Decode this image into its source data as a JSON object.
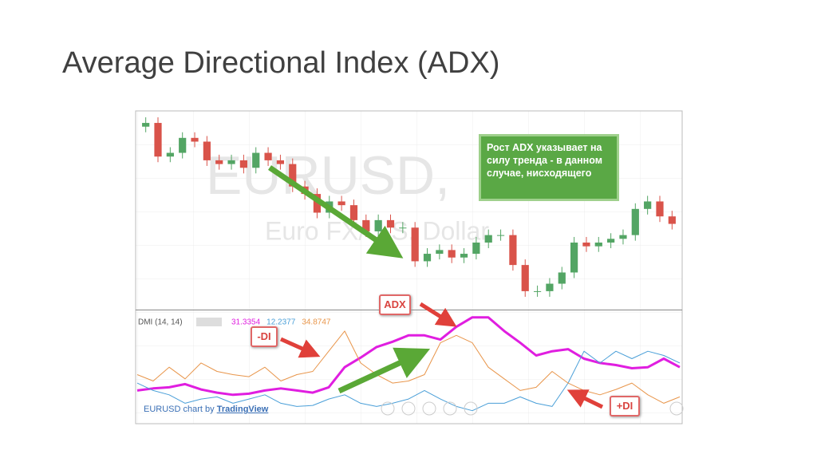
{
  "slide_title": "Average Directional Index (ADX)",
  "credit": {
    "text": "EURUSD chart by",
    "link": "TradingView"
  },
  "chart_data": [
    {
      "type": "candlestick",
      "title": "EURUSD,",
      "subtitle": "Euro FX/U.S. Dollar",
      "annotation": "Рост ADX указывает на силу тренда - в данном случае, нисходящего",
      "categories": [
        null,
        null,
        null,
        null,
        null,
        null,
        null,
        null,
        null,
        null,
        null,
        null,
        null,
        null,
        null,
        null,
        null,
        null,
        null,
        null,
        null,
        null,
        null,
        null,
        null,
        null,
        null,
        null,
        null,
        null,
        null,
        null,
        null,
        null,
        null,
        null,
        null,
        null,
        null,
        null,
        null,
        null,
        null,
        null
      ],
      "open": [
        97,
        99,
        81,
        83,
        91,
        89,
        79,
        77,
        79,
        75,
        83,
        79,
        77,
        65,
        61,
        51,
        57,
        55,
        47,
        41,
        47,
        43,
        43,
        25,
        29,
        31,
        27,
        29,
        35,
        39,
        39,
        23,
        9,
        9,
        13,
        19,
        35,
        33,
        35,
        37,
        39,
        53,
        57,
        49
      ],
      "high": [
        102,
        102,
        86,
        94,
        94,
        92,
        82,
        82,
        82,
        86,
        86,
        82,
        80,
        68,
        64,
        60,
        60,
        58,
        50,
        50,
        50,
        46,
        46,
        32,
        34,
        34,
        32,
        38,
        42,
        42,
        42,
        26,
        12,
        16,
        22,
        38,
        38,
        38,
        40,
        42,
        56,
        60,
        60,
        52
      ],
      "low": [
        94,
        78,
        78,
        80,
        86,
        76,
        74,
        74,
        72,
        72,
        76,
        74,
        62,
        58,
        48,
        48,
        52,
        44,
        38,
        38,
        40,
        40,
        22,
        22,
        26,
        24,
        24,
        26,
        32,
        36,
        20,
        6,
        6,
        6,
        10,
        16,
        30,
        30,
        32,
        34,
        36,
        50,
        46,
        42
      ],
      "close": [
        99,
        81,
        83,
        91,
        89,
        79,
        77,
        79,
        75,
        83,
        79,
        77,
        65,
        61,
        51,
        57,
        55,
        47,
        41,
        47,
        43,
        43,
        25,
        29,
        31,
        27,
        29,
        35,
        39,
        39,
        23,
        9,
        9,
        13,
        19,
        35,
        33,
        35,
        37,
        39,
        53,
        57,
        49,
        45
      ],
      "up_color": "#53a564",
      "down_color": "#d9534a",
      "ylim": [
        0,
        105
      ]
    },
    {
      "type": "line",
      "title": "DMI (14, 14)",
      "categories": [
        null,
        null,
        null,
        null,
        null,
        null,
        null,
        null,
        null,
        null,
        null,
        null,
        null,
        null,
        null,
        null,
        null,
        null,
        null,
        null,
        null,
        null,
        null,
        null,
        null,
        null,
        null,
        null,
        null,
        null,
        null,
        null,
        null,
        null,
        null
      ],
      "series": [
        {
          "name": "ADX",
          "color": "#e01ee0",
          "width": 3,
          "reading": "31.3354",
          "values": [
            29,
            31,
            32,
            35,
            30,
            27,
            25,
            26,
            29,
            31,
            29,
            27,
            32,
            51,
            60,
            70,
            75,
            81,
            81,
            77,
            89,
            98,
            98,
            85,
            74,
            62,
            66,
            68,
            59,
            55,
            53,
            50,
            51,
            59,
            51
          ]
        },
        {
          "name": "+DI",
          "color": "#4a9fd8",
          "width": 1,
          "reading": "12.2377",
          "values": [
            36,
            29,
            25,
            17,
            21,
            23,
            17,
            21,
            25,
            17,
            14,
            15,
            21,
            25,
            17,
            14,
            17,
            21,
            29,
            21,
            14,
            10,
            17,
            17,
            23,
            17,
            14,
            36,
            66,
            55,
            66,
            59,
            66,
            62,
            55
          ]
        },
        {
          "name": "-DI",
          "color": "#e8954a",
          "width": 1,
          "reading": "34.8747",
          "values": [
            44,
            38,
            51,
            40,
            55,
            47,
            44,
            42,
            51,
            38,
            44,
            47,
            66,
            85,
            55,
            44,
            36,
            38,
            44,
            74,
            81,
            74,
            51,
            40,
            29,
            32,
            47,
            36,
            29,
            25,
            30,
            36,
            25,
            17,
            23
          ]
        }
      ],
      "ylim": [
        0,
        100
      ]
    }
  ]
}
